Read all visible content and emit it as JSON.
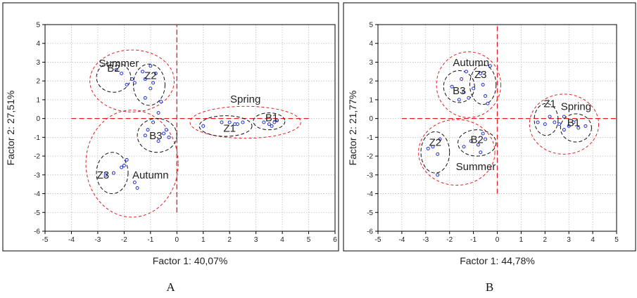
{
  "chart_data": [
    {
      "type": "scatter",
      "panel_label": "A",
      "xlabel": "Factor 1: 40,07%",
      "ylabel": "Factor 2: 27,51%",
      "xlim": [
        -5,
        6
      ],
      "ylim": [
        -6,
        5
      ],
      "xticks": [
        -5,
        -4,
        -3,
        -2,
        -1,
        0,
        1,
        2,
        3,
        4,
        5,
        6
      ],
      "yticks": [
        -6,
        -5,
        -4,
        -3,
        -2,
        -1,
        0,
        1,
        2,
        3,
        4,
        5
      ],
      "xtick_labels": [
        "-5",
        "-4",
        "-3",
        "-2",
        "-1",
        "0",
        "1",
        "2",
        "3",
        "4",
        "5",
        "6"
      ],
      "ytick_labels": [
        "-6",
        "-5",
        "-4",
        "-3",
        "-2",
        "-1",
        "0",
        "1",
        "2",
        "3",
        "4",
        "5"
      ],
      "grid": true,
      "reference_lines": {
        "x": 0,
        "y": 0,
        "x_extent": [
          -4,
          5
        ],
        "y_extent": [
          -5,
          5
        ]
      },
      "points": [
        {
          "x": -2.3,
          "y": 2.6
        },
        {
          "x": -2.1,
          "y": 2.4
        },
        {
          "x": -1.9,
          "y": 1.8
        },
        {
          "x": -1.7,
          "y": 2.1
        },
        {
          "x": -1.6,
          "y": 1.9
        },
        {
          "x": -1.3,
          "y": 2.5
        },
        {
          "x": -1.2,
          "y": 2.1
        },
        {
          "x": -1.0,
          "y": 2.8
        },
        {
          "x": -1.0,
          "y": 1.6
        },
        {
          "x": -0.9,
          "y": 1.9
        },
        {
          "x": -0.8,
          "y": 2.4
        },
        {
          "x": -1.2,
          "y": 1.1
        },
        {
          "x": -0.6,
          "y": 0.9
        },
        {
          "x": -0.7,
          "y": 0.3
        },
        {
          "x": -0.9,
          "y": -0.2
        },
        {
          "x": -1.1,
          "y": -0.6
        },
        {
          "x": -0.7,
          "y": -1.2
        },
        {
          "x": -0.5,
          "y": -0.8
        },
        {
          "x": -0.4,
          "y": -0.6
        },
        {
          "x": -0.3,
          "y": -1.0
        },
        {
          "x": -1.2,
          "y": -0.9
        },
        {
          "x": -2.7,
          "y": -3.0
        },
        {
          "x": -2.4,
          "y": -2.9
        },
        {
          "x": -2.1,
          "y": -2.6
        },
        {
          "x": -2.0,
          "y": -2.5
        },
        {
          "x": -1.9,
          "y": -2.2
        },
        {
          "x": -1.6,
          "y": -3.4
        },
        {
          "x": -1.5,
          "y": -3.7
        },
        {
          "x": 1.0,
          "y": -0.4
        },
        {
          "x": 1.7,
          "y": -0.2
        },
        {
          "x": 2.0,
          "y": -0.2
        },
        {
          "x": 2.2,
          "y": -0.3
        },
        {
          "x": 2.5,
          "y": -0.2
        },
        {
          "x": 2.3,
          "y": -0.3
        },
        {
          "x": 3.3,
          "y": -0.2
        },
        {
          "x": 3.5,
          "y": -0.3
        },
        {
          "x": 3.7,
          "y": -0.2
        },
        {
          "x": 3.8,
          "y": -0.1
        },
        {
          "x": 3.6,
          "y": -0.4
        }
      ],
      "ellipses": [
        {
          "style": "red",
          "cx": -1.7,
          "cy": 2.0,
          "rx": 1.6,
          "ry": 1.65
        },
        {
          "style": "black",
          "cx": -2.4,
          "cy": 2.2,
          "rx": 0.65,
          "ry": 0.8
        },
        {
          "style": "black",
          "cx": -1.05,
          "cy": 1.8,
          "rx": 0.6,
          "ry": 1.1
        },
        {
          "style": "red",
          "cx": -1.7,
          "cy": -2.4,
          "rx": 1.75,
          "ry": 2.85
        },
        {
          "style": "black",
          "cx": -0.75,
          "cy": -0.9,
          "rx": 0.75,
          "ry": 0.9
        },
        {
          "style": "black",
          "cx": -2.45,
          "cy": -2.9,
          "rx": 0.6,
          "ry": 1.1
        },
        {
          "style": "red",
          "cx": 2.6,
          "cy": -0.2,
          "rx": 2.1,
          "ry": 0.85
        },
        {
          "style": "black",
          "cx": 1.85,
          "cy": -0.4,
          "rx": 1.0,
          "ry": 0.55
        },
        {
          "style": "black",
          "cx": 3.5,
          "cy": -0.15,
          "rx": 0.6,
          "ry": 0.45
        }
      ],
      "annotations": [
        {
          "text": "Summer",
          "x": -2.2,
          "y": 2.75
        },
        {
          "text": "B2",
          "x": -2.4,
          "y": 2.5
        },
        {
          "text": "Z2",
          "x": -1.0,
          "y": 2.1
        },
        {
          "text": "Spring",
          "x": 2.6,
          "y": 0.85
        },
        {
          "text": "Z1",
          "x": 2.0,
          "y": -0.7
        },
        {
          "text": "B1",
          "x": 3.6,
          "y": -0.15
        },
        {
          "text": "B3",
          "x": -0.8,
          "y": -1.1
        },
        {
          "text": "Z3",
          "x": -2.8,
          "y": -3.2
        },
        {
          "text": "Autumn",
          "x": -1.0,
          "y": -3.2
        }
      ]
    },
    {
      "type": "scatter",
      "panel_label": "B",
      "xlabel": "Factor 1: 44,78%",
      "ylabel": "Factor 2: 21,77%",
      "xlim": [
        -5,
        5
      ],
      "ylim": [
        -6,
        5
      ],
      "xticks": [
        -5,
        -4,
        -3,
        -2,
        -1,
        0,
        1,
        2,
        3,
        4,
        5
      ],
      "yticks": [
        -6,
        -5,
        -4,
        -3,
        -2,
        -1,
        0,
        1,
        2,
        3,
        4,
        5
      ],
      "xtick_labels": [
        "-5",
        "-4",
        "-3",
        "-2",
        "-1",
        "0",
        "1",
        "2",
        "3",
        "4",
        "5"
      ],
      "ytick_labels": [
        "-6",
        "-5",
        "-4",
        "-3",
        "-2",
        "-1",
        "0",
        "1",
        "2",
        "3",
        "4",
        "5"
      ],
      "grid": true,
      "reference_lines": {
        "x": 0,
        "y": 0,
        "x_extent": [
          -4,
          5
        ],
        "y_extent": [
          -4,
          5
        ]
      },
      "points": [
        {
          "x": -1.9,
          "y": 1.7
        },
        {
          "x": -1.5,
          "y": 2.1
        },
        {
          "x": -1.3,
          "y": 2.5
        },
        {
          "x": -1.4,
          "y": 1.4
        },
        {
          "x": -1.6,
          "y": 1.0
        },
        {
          "x": -1.2,
          "y": 1.1
        },
        {
          "x": -1.0,
          "y": 1.6
        },
        {
          "x": -0.7,
          "y": 2.4
        },
        {
          "x": -0.6,
          "y": 1.8
        },
        {
          "x": -0.5,
          "y": 1.2
        },
        {
          "x": -0.4,
          "y": 0.8
        },
        {
          "x": -0.3,
          "y": 2.8
        },
        {
          "x": -2.9,
          "y": -1.6
        },
        {
          "x": -2.7,
          "y": -1.5
        },
        {
          "x": -2.5,
          "y": -1.9
        },
        {
          "x": -2.4,
          "y": -1.1
        },
        {
          "x": -2.5,
          "y": -3.0
        },
        {
          "x": -1.4,
          "y": -1.5
        },
        {
          "x": -1.1,
          "y": -1.2
        },
        {
          "x": -0.8,
          "y": -1.4
        },
        {
          "x": -0.6,
          "y": -0.8
        },
        {
          "x": -0.7,
          "y": -1.8
        },
        {
          "x": -0.5,
          "y": -1.1
        },
        {
          "x": 1.7,
          "y": -0.2
        },
        {
          "x": 2.0,
          "y": -0.3
        },
        {
          "x": 2.2,
          "y": 0.1
        },
        {
          "x": 2.4,
          "y": -0.2
        },
        {
          "x": 2.6,
          "y": -0.3
        },
        {
          "x": 2.8,
          "y": 0.1
        },
        {
          "x": 3.0,
          "y": -0.4
        },
        {
          "x": 3.2,
          "y": -0.2
        },
        {
          "x": 3.4,
          "y": -0.5
        },
        {
          "x": 3.7,
          "y": -0.4
        },
        {
          "x": 2.8,
          "y": -0.6
        }
      ],
      "ellipses": [
        {
          "style": "red",
          "cx": -1.2,
          "cy": 1.8,
          "rx": 1.35,
          "ry": 1.75
        },
        {
          "style": "black",
          "cx": -1.6,
          "cy": 1.7,
          "rx": 0.65,
          "ry": 0.85
        },
        {
          "style": "black",
          "cx": -0.6,
          "cy": 1.8,
          "rx": 0.55,
          "ry": 1.05
        },
        {
          "style": "red",
          "cx": -1.7,
          "cy": -1.8,
          "rx": 1.6,
          "ry": 1.75
        },
        {
          "style": "black",
          "cx": -2.6,
          "cy": -1.8,
          "rx": 0.6,
          "ry": 1.1
        },
        {
          "style": "black",
          "cx": -0.85,
          "cy": -1.3,
          "rx": 0.8,
          "ry": 0.7
        },
        {
          "style": "red",
          "cx": 2.8,
          "cy": -0.3,
          "rx": 1.45,
          "ry": 1.6
        },
        {
          "style": "black",
          "cx": 2.05,
          "cy": -0.05,
          "rx": 0.5,
          "ry": 0.85
        },
        {
          "style": "black",
          "cx": 3.3,
          "cy": -0.5,
          "rx": 0.65,
          "ry": 0.75
        }
      ],
      "annotations": [
        {
          "text": "Autumn",
          "x": -1.1,
          "y": 2.8
        },
        {
          "text": "Z3",
          "x": -0.7,
          "y": 2.15
        },
        {
          "text": "B3",
          "x": -1.6,
          "y": 1.3
        },
        {
          "text": "Spring",
          "x": 3.3,
          "y": 0.45
        },
        {
          "text": "Z1",
          "x": 2.2,
          "y": 0.6
        },
        {
          "text": "B1",
          "x": 3.2,
          "y": -0.4
        },
        {
          "text": "Z2",
          "x": -2.6,
          "y": -1.45
        },
        {
          "text": "B2",
          "x": -0.85,
          "y": -1.3
        },
        {
          "text": "Summer",
          "x": -0.9,
          "y": -2.75
        }
      ]
    }
  ]
}
